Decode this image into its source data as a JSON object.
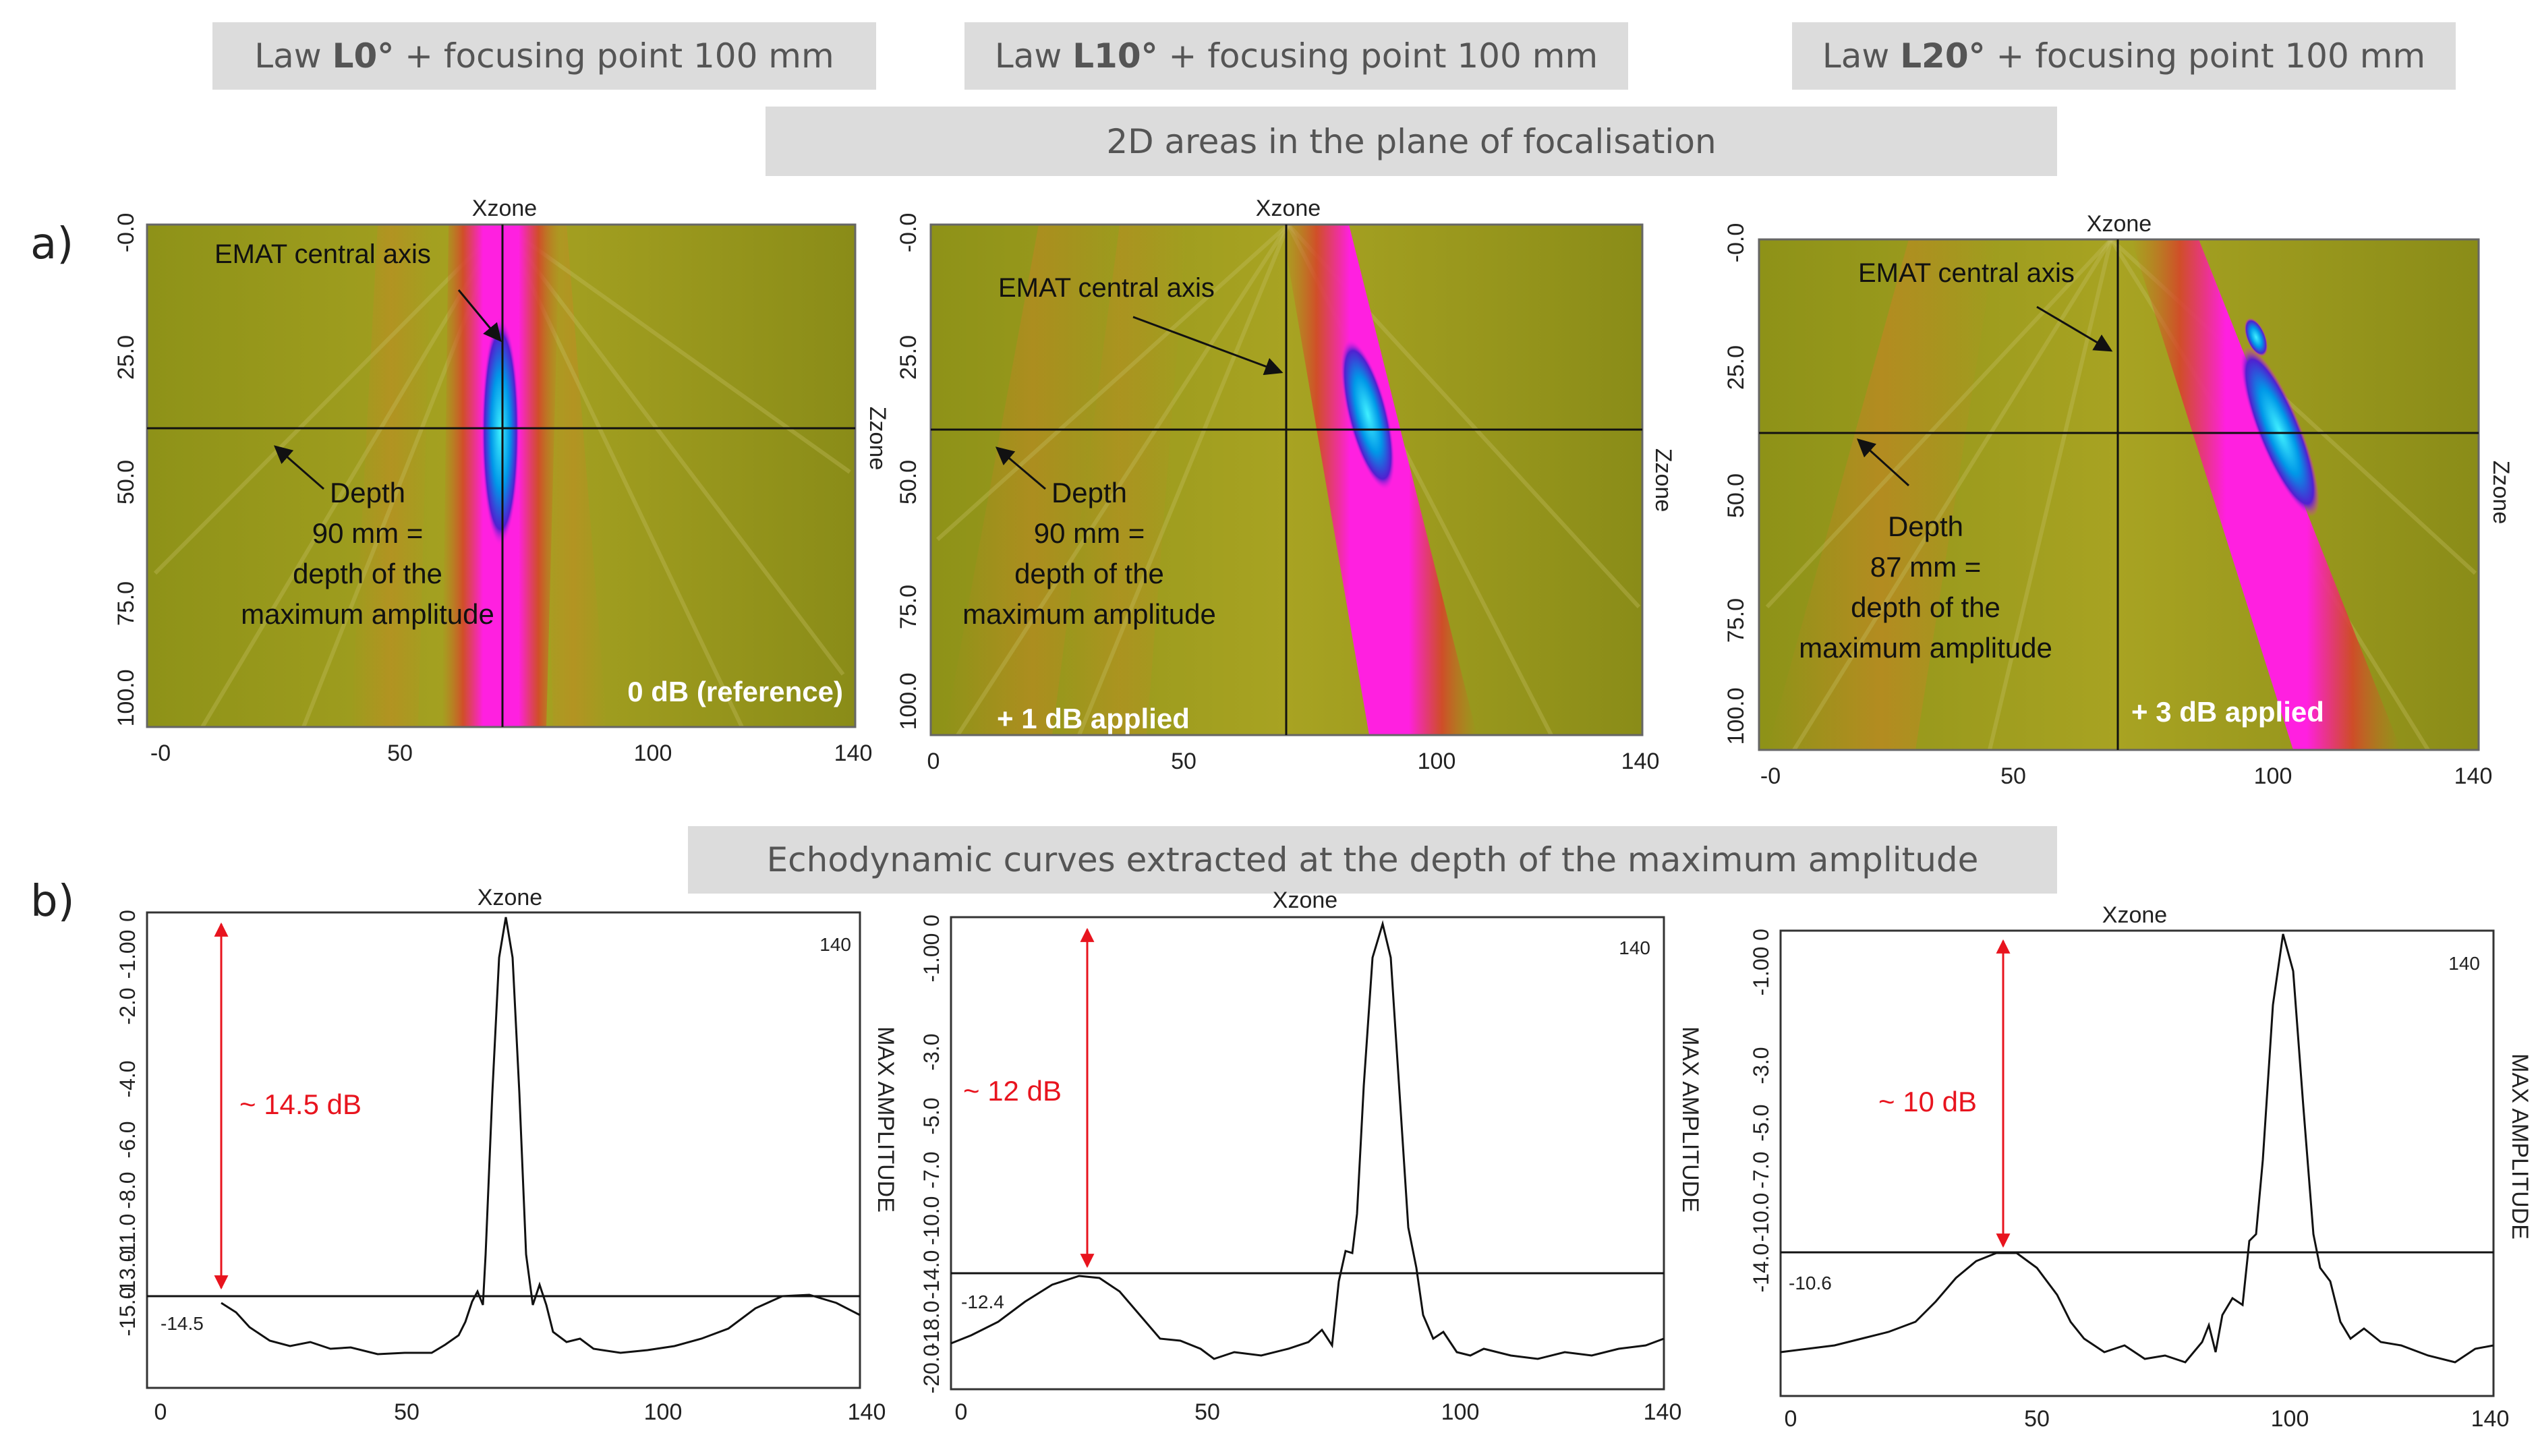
{
  "banners": {
    "law_l0_prefix": "Law ",
    "law_l0_bold": "L0°",
    "law_l0_suffix": " + focusing point 100 mm",
    "law_l10_prefix": "Law ",
    "law_l10_bold": "L10°",
    "law_l10_suffix": " + focusing point 100 mm",
    "law_l20_prefix": "Law ",
    "law_l20_bold": "L20°",
    "law_l20_suffix": " + focusing point 100 mm",
    "areas_2d": "2D areas in the plane of focalisation",
    "echodynamic": "Echodynamic curves extracted at the depth of the maximum amplitude"
  },
  "panel_labels": {
    "a": "a)",
    "b": "b)"
  },
  "axes": {
    "xzone": "Xzone",
    "zzone": "Zzone",
    "max_amplitude": "MAX AMPLITUDE",
    "x_ticks_first": "-0",
    "x_ticks_first_b": "0",
    "x_ticks": [
      "50",
      "100",
      "140"
    ],
    "z_ticks": [
      "-0.0",
      "25.0",
      "50.0",
      "75.0",
      "100.0"
    ],
    "x_tick_values": [
      0,
      50,
      100,
      140
    ],
    "z_tick_values": [
      0,
      25,
      50,
      75,
      100
    ]
  },
  "maps": [
    {
      "axis_label": "EMAT central axis",
      "depth_lines": [
        "Depth",
        "90 mm =",
        "depth of the",
        "maximum amplitude"
      ],
      "gain": "0 dB (reference)",
      "beam_angle_deg": 0,
      "cursor_x": 70,
      "cursor_z": 40
    },
    {
      "axis_label": "EMAT central axis",
      "depth_lines": [
        "Depth",
        "90 mm =",
        "depth of the",
        "maximum amplitude"
      ],
      "gain": "+ 1 dB applied",
      "beam_angle_deg": 10,
      "cursor_x": 70,
      "cursor_z": 40
    },
    {
      "axis_label": "EMAT central axis",
      "depth_lines": [
        "Depth",
        "87 mm =",
        "depth of the",
        "maximum amplitude"
      ],
      "gain": "+ 3 dB applied",
      "beam_angle_deg": 20,
      "cursor_x": 70,
      "cursor_z": 38
    }
  ],
  "curves": [
    {
      "y_ticks": [
        "0",
        "-1.00",
        "-2.0",
        "-4.0",
        "-6.0",
        "-8.0",
        "-11.0",
        "-13.0",
        "-15.0"
      ],
      "top_label": "140",
      "baseline_label": "-14.5",
      "delta_label": "~ 14.5 dB",
      "baseline_db": -14.5,
      "peak_x": 70
    },
    {
      "y_ticks": [
        "0",
        "-1.00",
        "-3.0",
        "-5.0",
        "-7.0",
        "-10.0",
        "-14.0",
        "-18.0",
        "-20.0"
      ],
      "top_label": "140",
      "baseline_label": "-12.4",
      "delta_label": "~ 12 dB",
      "baseline_db": -12.4,
      "peak_x": 85
    },
    {
      "y_ticks": [
        "0",
        "-1.00",
        "-3.0",
        "-5.0",
        "-7.0",
        "-10.0",
        "-14.0"
      ],
      "top_label": "140",
      "baseline_label": "-10.6",
      "delta_label": "~ 10 dB",
      "baseline_db": -10.6,
      "peak_x": 101
    }
  ],
  "colors": {
    "banner_bg": "#dcdcdc",
    "map_base": "#9a9a1a",
    "beam_edge": "#d8402a",
    "beam_core": "#ff20e0",
    "focus": "#00c8ff",
    "annotation_red": "#e8141e"
  }
}
